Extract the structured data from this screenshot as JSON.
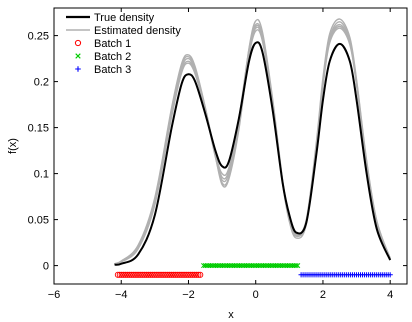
{
  "chart_data": {
    "type": "line",
    "title": "",
    "xlabel": "x",
    "ylabel": "f(x)",
    "xlim": [
      -6,
      4.5
    ],
    "ylim": [
      -0.02,
      0.28
    ],
    "x_ticks": [
      -6,
      -4,
      -2,
      0,
      2,
      4
    ],
    "x_tick_labels": [
      "−6",
      "−4",
      "−2",
      "0",
      "2",
      "4"
    ],
    "y_ticks": [
      0,
      0.05,
      0.1,
      0.15,
      0.2,
      0.25
    ],
    "y_tick_labels": [
      "0",
      "0.05",
      "0.1",
      "0.15",
      "0.2",
      "0.25"
    ],
    "grid": false,
    "legend_position": "top-left",
    "legend": [
      {
        "label": "True density",
        "kind": "line",
        "color": "#000000"
      },
      {
        "label": "Estimated density",
        "kind": "line",
        "color": "#b0b0b0"
      },
      {
        "label": "Batch 1",
        "kind": "marker-circle",
        "color": "#ff0000"
      },
      {
        "label": "Batch 2",
        "kind": "marker-x",
        "color": "#00cc00"
      },
      {
        "label": "Batch 3",
        "kind": "marker-plus",
        "color": "#0000ff"
      }
    ],
    "series": [
      {
        "name": "True density",
        "color": "#000000",
        "x": [
          -4.2,
          -4.0,
          -3.5,
          -3.0,
          -2.5,
          -2.2,
          -2.0,
          -1.8,
          -1.5,
          -1.2,
          -1.0,
          -0.8,
          -0.5,
          -0.2,
          0.0,
          0.2,
          0.5,
          0.8,
          1.0,
          1.2,
          1.5,
          1.8,
          2.0,
          2.2,
          2.5,
          2.8,
          3.0,
          3.3,
          3.6,
          4.0
        ],
        "y": [
          0.001,
          0.002,
          0.012,
          0.055,
          0.15,
          0.198,
          0.208,
          0.2,
          0.165,
          0.125,
          0.108,
          0.113,
          0.16,
          0.222,
          0.242,
          0.232,
          0.17,
          0.09,
          0.055,
          0.036,
          0.046,
          0.12,
          0.18,
          0.222,
          0.241,
          0.222,
          0.18,
          0.1,
          0.04,
          0.006
        ]
      },
      {
        "name": "Estimated density",
        "color": "#b0b0b0",
        "x": [
          -4.2,
          -4.0,
          -3.5,
          -3.0,
          -2.5,
          -2.2,
          -2.0,
          -1.8,
          -1.5,
          -1.2,
          -1.0,
          -0.8,
          -0.5,
          -0.2,
          0.0,
          0.2,
          0.5,
          0.8,
          1.0,
          1.2,
          1.5,
          1.8,
          2.0,
          2.2,
          2.5,
          2.8,
          3.0,
          3.3,
          3.6,
          4.0
        ],
        "y": [
          0.002,
          0.004,
          0.02,
          0.07,
          0.168,
          0.215,
          0.225,
          0.212,
          0.17,
          0.122,
          0.1,
          0.106,
          0.16,
          0.235,
          0.262,
          0.25,
          0.18,
          0.092,
          0.052,
          0.034,
          0.048,
          0.13,
          0.2,
          0.248,
          0.265,
          0.245,
          0.2,
          0.112,
          0.048,
          0.008
        ]
      },
      {
        "name": "",
        "color": "#b0b0b0",
        "x": [
          -4.2,
          -4.0,
          -3.5,
          -3.0,
          -2.5,
          -2.2,
          -2.0,
          -1.8,
          -1.5,
          -1.2,
          -1.0,
          -0.8,
          -0.5,
          -0.2,
          0.0,
          0.2,
          0.5,
          0.8,
          1.0,
          1.2,
          1.5,
          1.8,
          2.0,
          2.2,
          2.5,
          2.8,
          3.0,
          3.3,
          3.6,
          4.0
        ],
        "y": [
          0.002,
          0.004,
          0.018,
          0.066,
          0.162,
          0.21,
          0.22,
          0.208,
          0.168,
          0.118,
          0.093,
          0.1,
          0.152,
          0.228,
          0.255,
          0.244,
          0.176,
          0.09,
          0.05,
          0.032,
          0.046,
          0.126,
          0.195,
          0.242,
          0.258,
          0.24,
          0.196,
          0.11,
          0.046,
          0.007
        ]
      },
      {
        "name": "",
        "color": "#b0b0b0",
        "x": [
          -4.2,
          -4.0,
          -3.5,
          -3.0,
          -2.5,
          -2.2,
          -2.0,
          -1.8,
          -1.5,
          -1.2,
          -1.0,
          -0.8,
          -0.5,
          -0.2,
          0.0,
          0.2,
          0.5,
          0.8,
          1.0,
          1.2,
          1.5,
          1.8,
          2.0,
          2.2,
          2.5,
          2.8,
          3.0,
          3.3,
          3.6,
          4.0
        ],
        "y": [
          0.002,
          0.005,
          0.022,
          0.074,
          0.172,
          0.22,
          0.229,
          0.216,
          0.172,
          0.12,
          0.09,
          0.096,
          0.15,
          0.232,
          0.26,
          0.248,
          0.178,
          0.089,
          0.048,
          0.03,
          0.044,
          0.128,
          0.198,
          0.246,
          0.262,
          0.243,
          0.198,
          0.111,
          0.047,
          0.007
        ]
      },
      {
        "name": "",
        "color": "#b0b0b0",
        "x": [
          -4.2,
          -4.0,
          -3.5,
          -3.0,
          -2.5,
          -2.2,
          -2.0,
          -1.8,
          -1.5,
          -1.2,
          -1.0,
          -0.8,
          -0.5,
          -0.2,
          0.0,
          0.2,
          0.5,
          0.8,
          1.0,
          1.2,
          1.5,
          1.8,
          2.0,
          2.2,
          2.5,
          2.8,
          3.0,
          3.3,
          3.6,
          4.0
        ],
        "y": [
          0.002,
          0.004,
          0.019,
          0.068,
          0.165,
          0.212,
          0.222,
          0.21,
          0.17,
          0.121,
          0.096,
          0.103,
          0.156,
          0.236,
          0.266,
          0.254,
          0.182,
          0.093,
          0.053,
          0.035,
          0.049,
          0.133,
          0.204,
          0.252,
          0.268,
          0.248,
          0.202,
          0.114,
          0.049,
          0.008
        ]
      },
      {
        "name": "",
        "color": "#b0b0b0",
        "x": [
          -4.2,
          -4.0,
          -3.5,
          -3.0,
          -2.5,
          -2.2,
          -2.0,
          -1.8,
          -1.5,
          -1.2,
          -1.0,
          -0.8,
          -0.5,
          -0.2,
          0.0,
          0.2,
          0.5,
          0.8,
          1.0,
          1.2,
          1.5,
          1.8,
          2.0,
          2.2,
          2.5,
          2.8,
          3.0,
          3.3,
          3.6,
          4.0
        ],
        "y": [
          0.002,
          0.005,
          0.021,
          0.072,
          0.17,
          0.218,
          0.227,
          0.214,
          0.171,
          0.119,
          0.088,
          0.094,
          0.148,
          0.23,
          0.258,
          0.246,
          0.177,
          0.091,
          0.051,
          0.033,
          0.047,
          0.127,
          0.196,
          0.244,
          0.26,
          0.242,
          0.197,
          0.11,
          0.046,
          0.007
        ]
      }
    ],
    "batches": [
      {
        "name": "Batch 1",
        "marker": "circle",
        "color": "#ff0000",
        "y": -0.01,
        "x_range": [
          -4.1,
          -1.65
        ]
      },
      {
        "name": "Batch 2",
        "marker": "x",
        "color": "#00cc00",
        "y": 0.0,
        "x_range": [
          -1.55,
          1.25
        ]
      },
      {
        "name": "Batch 3",
        "marker": "plus",
        "color": "#0000ff",
        "y": -0.01,
        "x_range": [
          1.35,
          4.0
        ]
      }
    ]
  }
}
